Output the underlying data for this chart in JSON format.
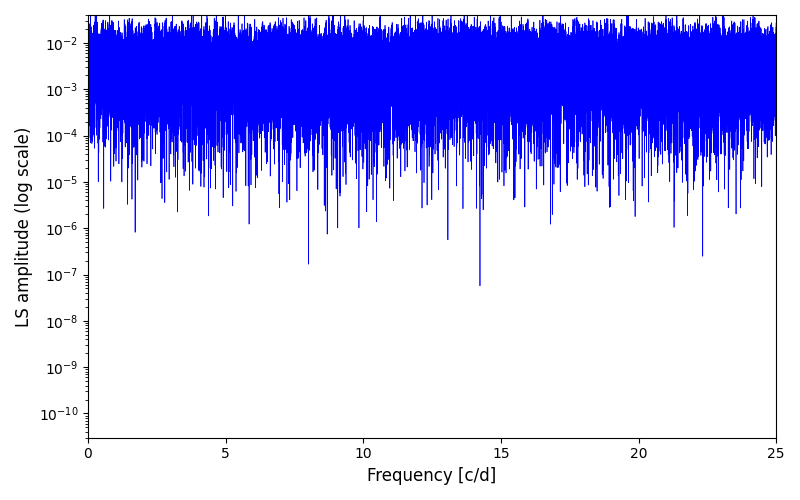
{
  "line_color": "#0000ff",
  "xlabel": "Frequency [c/d]",
  "ylabel": "LS amplitude (log scale)",
  "xlim": [
    0,
    25
  ],
  "ylim_low": 3e-11,
  "ylim_high": 0.04,
  "xticks": [
    0,
    5,
    10,
    15,
    20,
    25
  ],
  "background_color": "#ffffff",
  "linewidth": 0.5,
  "seed": 12345,
  "n_obs": 2000,
  "n_freq": 50000,
  "figsize": [
    8.0,
    5.0
  ],
  "dpi": 100
}
